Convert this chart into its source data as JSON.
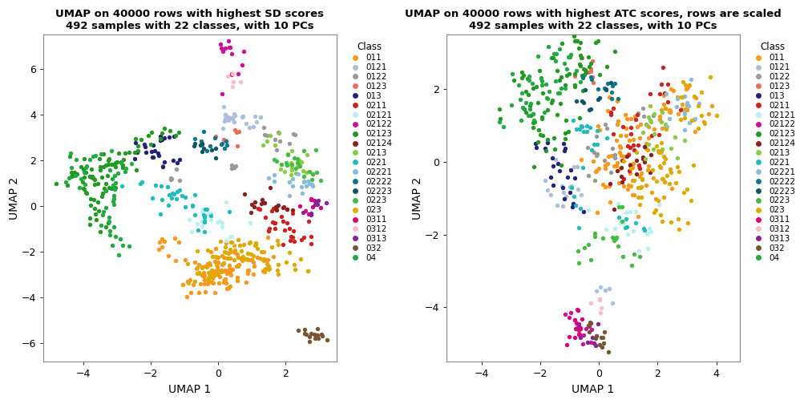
{
  "title1": "UMAP on 40000 rows with highest SD scores\n492 samples with 22 classes, with 10 PCs",
  "title2": "UMAP on 40000 rows with highest ATC scores, rows are scaled\n492 samples with 22 classes, with 10 PCs",
  "xlabel": "UMAP 1",
  "ylabel": "UMAP 2",
  "classes": [
    "011",
    "0121",
    "0122",
    "0123",
    "013",
    "0211",
    "02121",
    "02122",
    "02123",
    "02124",
    "0213",
    "0221",
    "02221",
    "02222",
    "02223",
    "0223",
    "023",
    "0311",
    "0312",
    "0313",
    "032",
    "04"
  ],
  "colors": {
    "011": "#F8981D",
    "0121": "#AABFDD",
    "0122": "#999999",
    "0123": "#E8705A",
    "013": "#222277",
    "0211": "#CC2222",
    "02121": "#BBEEEE",
    "02122": "#CC1199",
    "02123": "#229922",
    "02124": "#882222",
    "0213": "#88CC44",
    "0221": "#22BBBB",
    "02221": "#88BBDD",
    "02222": "#117788",
    "02223": "#115566",
    "0223": "#44BB44",
    "023": "#DDAA00",
    "0311": "#DD0077",
    "0312": "#FFBBCC",
    "0313": "#882299",
    "032": "#775533",
    "04": "#22AA44"
  },
  "xlim1": [
    -5.2,
    3.5
  ],
  "ylim1": [
    -6.8,
    7.5
  ],
  "xticks1": [
    -4,
    -2,
    0,
    2
  ],
  "yticks1": [
    -6,
    -4,
    -2,
    0,
    2,
    4,
    6
  ],
  "xlim2": [
    -5.2,
    4.8
  ],
  "ylim2": [
    -5.5,
    3.5
  ],
  "xticks2": [
    -4,
    -2,
    0,
    2,
    4
  ],
  "yticks2": [
    -4,
    -2,
    0,
    2
  ],
  "point_size": 15,
  "background_color": "#FFFFFF",
  "panel_bg": "#FFFFFF",
  "border_color": "#888888"
}
